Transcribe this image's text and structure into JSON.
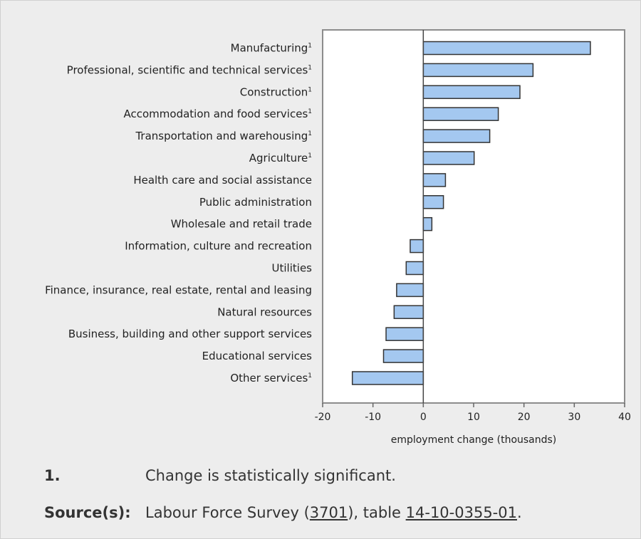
{
  "chart_data": {
    "type": "bar",
    "orientation": "horizontal",
    "categories": [
      {
        "label": "Manufacturing",
        "significant": true
      },
      {
        "label": "Professional, scientific and technical services",
        "significant": true
      },
      {
        "label": "Construction",
        "significant": true
      },
      {
        "label": "Accommodation and food services",
        "significant": true
      },
      {
        "label": "Transportation and warehousing",
        "significant": true
      },
      {
        "label": "Agriculture",
        "significant": true
      },
      {
        "label": "Health care and social assistance",
        "significant": false
      },
      {
        "label": "Public administration",
        "significant": false
      },
      {
        "label": "Wholesale and retail trade",
        "significant": false
      },
      {
        "label": "Information, culture and recreation",
        "significant": false
      },
      {
        "label": "Utilities",
        "significant": false
      },
      {
        "label": "Finance, insurance, real estate, rental and leasing",
        "significant": false
      },
      {
        "label": "Natural resources",
        "significant": false
      },
      {
        "label": "Business, building and other support services",
        "significant": false
      },
      {
        "label": "Educational services",
        "significant": false
      },
      {
        "label": "Other services",
        "significant": true
      }
    ],
    "values": [
      33.2,
      21.8,
      19.2,
      14.9,
      13.2,
      10.1,
      4.4,
      4.0,
      1.7,
      -2.6,
      -3.4,
      -5.3,
      -5.8,
      -7.4,
      -7.9,
      -14.1
    ],
    "xlim": [
      -20,
      40
    ],
    "xticks": [
      "-20",
      "-10",
      "0",
      "10",
      "20",
      "30",
      "40"
    ],
    "xlabel": "employment change (thousands)",
    "significance_marker": "1",
    "bar_color": "#a4c8f0",
    "bar_edge": "#333333"
  },
  "footnotes": {
    "note_key": "1.",
    "note_text": "Change is statistically significant.",
    "source_key": "Source(s):",
    "source_prefix": "Labour Force Survey (",
    "source_link1": "3701",
    "source_middle": "), table ",
    "source_link2": "14-10-0355-01",
    "source_suffix": "."
  }
}
